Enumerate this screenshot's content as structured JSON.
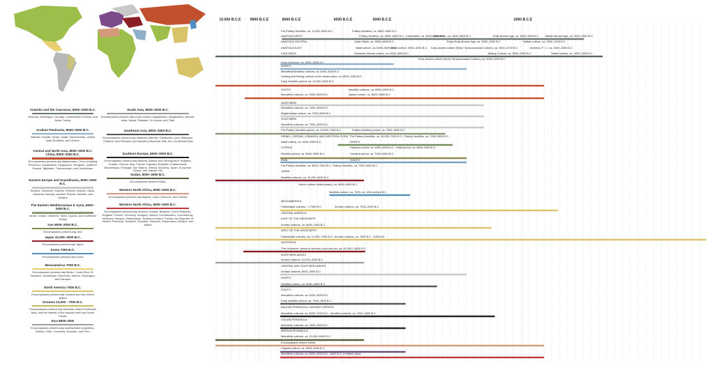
{
  "timeline": {
    "ticks": [
      {
        "value": 10000,
        "label": "10,000 B.C.E"
      },
      {
        "value": 9000,
        "label": "9000 B.C.E"
      },
      {
        "value": 8000,
        "label": "8000 B.C.E"
      },
      {
        "value": 6500,
        "label": "6500 B.C.E"
      },
      {
        "value": 5000,
        "label": "5000 B.C.E"
      },
      {
        "value": 2000,
        "label": "2000 B.C.E"
      }
    ],
    "rows": [
      [
        "Pre-Pottery Neolithic, ca. 11,000–6000 B.C.",
        "Pottery Neolithic, ca. 6900–6400 B.C."
      ],
      [
        "ANATOLIA WEST",
        "Pottery Neolithic, ca. 6900–6000 B.C.; Chalcolithic, ca. 6400–3800 B.C.",
        "Chalcolithic, ca. 6400–3800 B.C.",
        "Early Bronze Age, ca. 3000–2000 B.C.",
        "Middle Bronze Age, ca. 2000–1500 B.C."
      ],
      [
        "ANATOLIA CENTRAL",
        "Çatal Höyük, ca. 6900–6000 B.C.",
        "Trojan Early Bronze Age, ca. 3000–1900 B.C.",
        "Hattian culture, ca. 2500–2100 B.C."
      ],
      [
        "ANATOLIA EAST",
        "Halaf culture, ca. 6000–5000 B.C.",
        "Ubaid culture, 5000–4200 B.C.",
        "Kura-Araxes culture (Early Transcaucasian Culture), ca. 3500–2200 B.C.",
        "Armenia, P. I. I. ca. 3100–2000 B.C."
      ],
      [
        "CAUCASUS",
        "Shulaveri-Shomu culture, ca. 6000–4000 B.C.",
        "Maikop Culture, ca. 3500–2500 B.C.",
        "Trialeti culture, ca. 2200–1500 B.C."
      ],
      [
        "Kura-Araxes culture (Early Transcaucasian Culture), ca. 4000–2200 B.C."
      ],
      [
        "Early Holocene, ca. 8000–5000 B.C."
      ],
      [
        "NORTH"
      ],
      [
        "Mesolithic/Neolithic cultures, ca. 8000–3500 B.C."
      ],
      [
        "Hunting and fishing cultures in the tundra band, ca. 8000–2000 B.C."
      ],
      [
        "Early Neolithic period, ca. 10,000–5000 B.C."
      ],
      [
        "SOUTH",
        "Neolithic cultures, ca. 6500–4000 B.C."
      ],
      [
        "Mesolithic cultures, ca. 9000–5000 B.C.",
        "Qadan culture, ca. 8000–5000 B.C."
      ],
      [
        "NORTHERN"
      ],
      [
        "Mesolithic cultures, ca. 7500–3000 B.C."
      ],
      [
        "Maglemosian culture, ca. 7500–5600 B.C."
      ],
      [
        "SOUTHERN"
      ],
      [
        "Mesolithic cultures, ca. 7500–3000 B.C."
      ],
      [
        "Pre-Pottery Neolithic period, ca. 10,500–7000 B.C.",
        "Pottery Neolithic period, ca. 7000–5500 B.C."
      ],
      [
        "ISRAEL, JORDAN, LEBANON, AND WESTERN SYRIA",
        "Pre-Pottery Neolithic, ca. 10,000–7000 B.C.; Pottery Neolithic, ca. 7000–5500 B.C."
      ],
      [
        "Natuf culture, ca. 4000–3500 B.C.",
        "NORTH"
      ],
      [
        "CYPRUS",
        "Hassuna period, ca. 6900–6000 B.C.; Halaf period, ca. 6000–5300 B.C."
      ],
      [
        "Neolithic period, ca. 8500–3900 B.C.",
        "Samarra period, ca. 7000–6300 B.C."
      ],
      [
        "IRAN",
        "SOUTH"
      ],
      [
        "Pre-Pottery Neolithic, ca. 8000–7500 B.C.; Pottery Neolithic, ca. 7500–5000 B.C."
      ],
      [
        "JAPAN"
      ],
      [
        "Neolithic cultures, ca. 10,000–6000 B.C."
      ],
      [
        "Jōmon culture (initial phase), ca. 8000–5000 B.C."
      ],
      [
        "Neolithic culture, ca. 7000–ca. 10th century B.C."
      ],
      [
        "MESOAMERICA"
      ],
      [
        "Paleoindian cultures, ?–7000 B.C.",
        "Archaic cultures, ca. 7000–2000 B.C."
      ],
      [
        "CENTRAL AMERICA"
      ],
      [
        "EAST OF THE MISSISSIPPI"
      ],
      [
        "Archaic cultures, ca. 8000–1000 B.C."
      ],
      [
        "WEST OF THE MISSISSIPPI"
      ],
      [
        "Paleoindian cultures, ca. 12,000–7000 B.C.; Archaic cultures, ca. 7000 B.C.–1000 A.D."
      ],
      [
        "AUSTRALIA"
      ],
      [
        "\"Pre-Holocene\" period in Arnhem Land rock art, ca. 40,000?–6000 B.C."
      ],
      [
        "NORTHERN ANDES"
      ],
      [
        "Archaic cultures, 10,000–4000 B.C."
      ],
      [
        "CENTRAL AND SOUTHERN ANDES"
      ],
      [
        "Archaic cultures, 8000–3000 B.C."
      ],
      [
        "NORTH"
      ],
      [
        "Neolithic culture, ca. 8000–4500 B.C."
      ],
      [
        "SOUTH"
      ],
      [
        "Mesolithic cultures, ca. 9000–3000 B.C."
      ],
      [
        "Early Neolithic period, ca. 7000–2800 B.C."
      ],
      [
        "BALKAN PENINSULA / ANCIENT GREECE"
      ],
      [
        "Mesolithic cultures, ca. 8000–7000 B.C.; Neolithic cultures, ca. 7000–3300 B.C."
      ],
      [
        "ITALIAN PENINSULA"
      ],
      [
        "Mesolithic cultures, ca. 2600–1500 B.C."
      ],
      [
        "IBERIAN PENINSULA"
      ],
      [
        "Mesolithic cultures, ca. 10,000–6000 B.C."
      ],
      [
        "Encompasses ancient Nubia"
      ],
      [
        "Capsian culture, ca. 8000–4500 B.C."
      ],
      [
        "Mesolithic cultures, ca. 8000–3000 B.C. (4500 B.C. in British Isles)"
      ]
    ],
    "bars": [
      {
        "from": 8300,
        "to": 700,
        "color": "#6e7878"
      },
      {
        "from": 10500,
        "to": 300,
        "color": "#5a6466"
      },
      {
        "from": 8350,
        "to": 4750,
        "color": "#8fb0c8"
      },
      {
        "from": 8350,
        "to": 3200,
        "color": "#8fb0c8"
      },
      {
        "from": 10500,
        "to": 1550,
        "color": "#c0502e"
      },
      {
        "from": 9500,
        "to": 1550,
        "color": "#c0502e"
      },
      {
        "from": 8350,
        "to": 2830,
        "color": "#c8c8c8"
      },
      {
        "from": 8350,
        "to": 2830,
        "color": "#c8c8c8"
      },
      {
        "from": 8350,
        "to": 2830,
        "color": "#c8c8c8"
      },
      {
        "from": 10500,
        "to": 3650,
        "color": "#8a9a78"
      },
      {
        "from": 6650,
        "to": 3500,
        "color": "#6f8c5a"
      },
      {
        "from": 8350,
        "to": 3200,
        "color": "#8a8a50"
      },
      {
        "from": 8350,
        "to": 3200,
        "color": "#7aa0c0"
      },
      {
        "from": 10500,
        "to": 5700,
        "color": "#8b1e24"
      },
      {
        "from": 6900,
        "to": 4400,
        "color": "#4f8fc0"
      },
      {
        "from": 8350,
        "to": 1250,
        "color": "#d8c36a"
      },
      {
        "from": 10500,
        "to": 2670,
        "color": "#d8c36a"
      },
      {
        "from": 10500,
        "to": -1900,
        "color": "#d8c36a"
      },
      {
        "from": 9550,
        "to": 5650,
        "color": "#8b1e24"
      },
      {
        "from": 10500,
        "to": 5700,
        "color": "#a0a0a0"
      },
      {
        "from": 8350,
        "to": 3200,
        "color": "#c8c8c8"
      },
      {
        "from": 8350,
        "to": 3830,
        "color": "#555555"
      },
      {
        "from": 8350,
        "to": 4500,
        "color": "#555555"
      },
      {
        "from": 8350,
        "to": 2600,
        "color": "#222222"
      },
      {
        "from": 8350,
        "to": 4500,
        "color": "#222222"
      },
      {
        "from": 10500,
        "to": 5700,
        "color": "#5a5a3a"
      },
      {
        "from": 10500,
        "to": 1550,
        "color": "#d49a7a"
      },
      {
        "from": 8350,
        "to": 4500,
        "color": "#6a4a7a"
      },
      {
        "from": 8350,
        "to": 1550,
        "color": "#c03a3a"
      }
    ]
  },
  "legend": {
    "left": [
      {
        "title": "Anatolia and the Caucasus, 8000–2000 B.C.",
        "color": "#6e7878",
        "desc": "Armenia, Azerbaijan, Georgia, southeastern Russia, and Asian Turkey"
      },
      {
        "title": "Arabian Peninsula, 8000–2000 B.C.",
        "color": "#8fb0c8",
        "desc": "Bahrain, Kuwait, Oman, Qatar, Saudi Arabia, United Arab Emirates, and Yemen"
      },
      {
        "title": "Central and North Asia, 8000–2000 B.C. China, 8000–2000 B.C.",
        "color": "#c0502e",
        "desc": "Encompasses present-day Afghanistan, China (Xinjiang Province), Kazakhstan, Kyrgyzstan, Mongolia, southern Russia, Tajikistan, Turkmenistan, and Uzbekistan"
      },
      {
        "title": "Eastern Europe and Scandinavia, 8000–2000 B.C.",
        "color": "#c8c8c8",
        "desc": "Belarus, Denmark, Estonia, Finland, Iceland, Latvia, Lithuania, Norway, western Russia, Sweden, and Ukraine"
      },
      {
        "title": "The Eastern Mediterranean & Syria, 8000–2000 B.C.",
        "color": "#8a9a78",
        "desc": "Israel, Jordan, Lebanon, Syria, Cyprus, and southeast Turkey"
      },
      {
        "title": "Iran 8000–2000 B.C.",
        "color": "#8a8a50",
        "desc": "Encompasses present-day Iran"
      },
      {
        "title": "Japan 10,000–2000 B.C.",
        "color": "#8b1e24",
        "desc": "Encompasses present-day Japan"
      },
      {
        "title": "Korea 7000 B.C.",
        "color": "#4f8fc0",
        "desc": "Encompasses present-day Korea"
      },
      {
        "title": "Mesoamerica 7000 B.C.",
        "color": "#e8d070",
        "desc": "Encompasses present-day Belize, Costa Rica, El Salvador, Guatemala, Honduras, Mexico, Nicaragua, and Panama"
      },
      {
        "title": "North America 7000 B.C.",
        "color": "#d8c36a",
        "desc": "Encompasses present-day Canada and the United States"
      },
      {
        "title": "Oceania 12,000 - 7000 B.C.",
        "color": "#c8b860",
        "desc": "Encompasses present-day Australia, Island Southeast Asia, and the islands of the tropical north and south Pacific"
      },
      {
        "title": "Inca 8000-1000",
        "color": "#a0a0a0",
        "desc": "Encompasses present-day southwestern Argentina, Bolivia, Chile, Colombia, Ecuador, and Peru"
      }
    ],
    "middle": [
      {
        "title": "South Asia, 8000–2000 B.C.",
        "color": "#9a9a9a",
        "desc": "Encompasses present-day south-eastern Afghanistan, Bangladesh, Bhutan, India, Nepal, Pakistan, Sri Lanka, and Tibet"
      },
      {
        "title": "Southeast Asia, 8000–2000 B.C.",
        "color": "#555555",
        "desc": "Encompasses present-day mainland (Burma, Cambodia, Laos, Malaysia, Thailand, and Vietnam) and islands (Indonesia, Bali, etc.) Southeast Asia"
      },
      {
        "title": "Southern Europe, 8000–2000 B.C.",
        "color": "#222222",
        "desc": "Encompasses present-day Albania, Bosnia and Herzegovina, Bulgaria, Croatia, Greece, Italy, Former Yugoslav Republic of Macedonia, Montenegro, Portugal, San Marino, Serbia, Slovenia, Spain, European Turkey, and Vatican City"
      },
      {
        "title": "Sudan, 8000–2000 B.C.",
        "color": "#5a5a3a",
        "desc": "Encompasses ancient Nubia"
      },
      {
        "title": "Western North Africa, 8000–2000 B.C.",
        "color": "#d49a7a",
        "desc": "Encompasses present-day Algeria, Libya, Morocco, and Tunisia"
      },
      {
        "title": "Western North Africa, 8000–2000 B.C.",
        "color": "#c03a3a",
        "desc": "Encompasses present-day Andorra, Austria, Belgium, Czech Republic, England, France, Germany, Hungary, Ireland, Liechtenstein, Luxembourg, Moldova, Monaco, Netherlands, Northern Ireland, Poland, the Republic of Ireland, Romania, Scotland, Slovakia, Slovenia, Switzerland, Ukraine, and Wales"
      }
    ]
  }
}
